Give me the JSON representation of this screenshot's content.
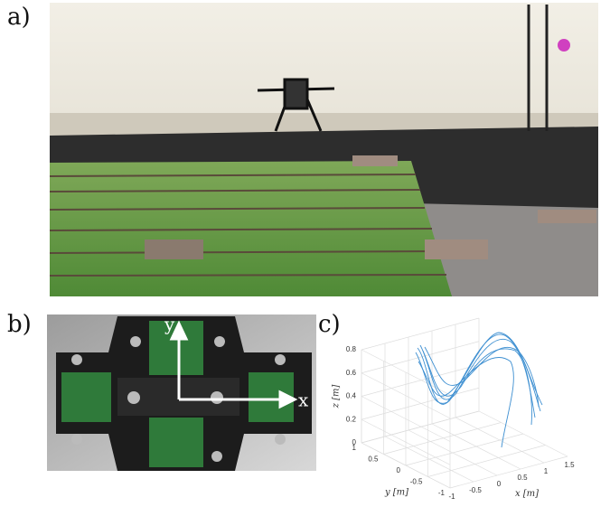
{
  "panels": {
    "a": "a)",
    "b": "b)",
    "c": "c)"
  },
  "photo_b": {
    "x_label": "x",
    "y_label": "y"
  },
  "chart_data": {
    "type": "line3d",
    "xlabel": "x [m]",
    "ylabel": "y [m]",
    "zlabel": "z [m]",
    "xlim": [
      -1,
      1.5
    ],
    "ylim": [
      -1,
      1
    ],
    "zlim": [
      0,
      0.8
    ],
    "xticks": [
      -1,
      -0.5,
      0,
      0.5,
      1,
      1.5
    ],
    "yticks": [
      -1,
      -0.5,
      0,
      0.5,
      1
    ],
    "zticks": [
      0,
      0.2,
      0.4,
      0.6,
      0.8
    ],
    "grid": true
  }
}
